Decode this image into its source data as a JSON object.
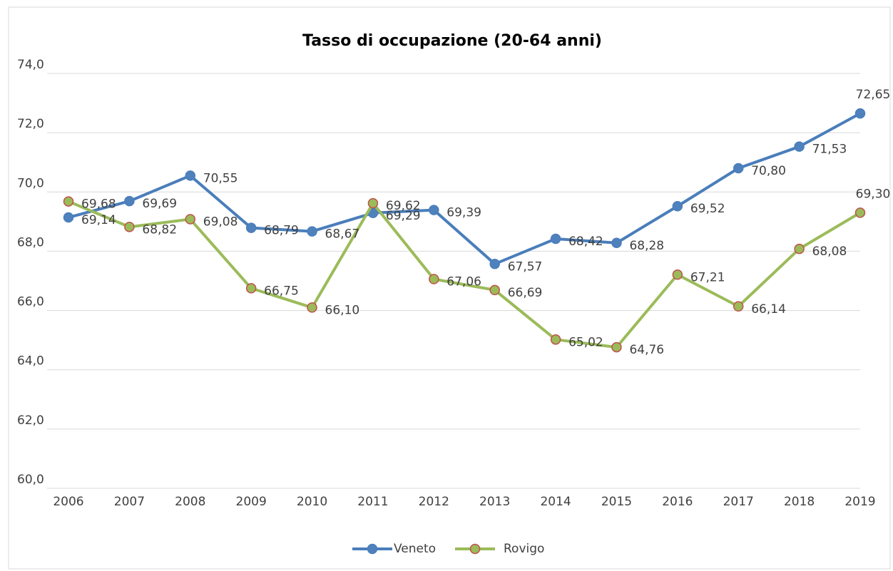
{
  "chart_data": {
    "type": "line",
    "title": "Tasso di occupazione (20-64 anni)",
    "categories": [
      "2006",
      "2007",
      "2008",
      "2009",
      "2010",
      "2011",
      "2012",
      "2013",
      "2014",
      "2015",
      "2016",
      "2017",
      "2018",
      "2019"
    ],
    "series": [
      {
        "name": "Veneto",
        "color": "#4a7ebb",
        "marker_color": "#4f81bd",
        "marker_edge": "#4a7ebb",
        "values": [
          69.14,
          69.69,
          70.55,
          68.79,
          68.67,
          69.29,
          69.39,
          67.57,
          68.42,
          68.28,
          69.52,
          70.8,
          71.53,
          72.65
        ],
        "value_labels": [
          "69,14",
          "69,69",
          "70,55",
          "68,79",
          "68,67",
          "69,29",
          "69,39",
          "67,57",
          "68,42",
          "68,28",
          "69,52",
          "70,80",
          "71,53",
          "72,65"
        ]
      },
      {
        "name": "Rovigo",
        "color": "#9bbb59",
        "marker_color": "#9bbb59",
        "marker_edge": "#c0504d",
        "values": [
          69.68,
          68.82,
          69.08,
          66.75,
          66.1,
          69.62,
          67.06,
          66.69,
          65.02,
          64.76,
          67.21,
          66.14,
          68.08,
          69.3
        ],
        "value_labels": [
          "69,68",
          "68,82",
          "69,08",
          "66,75",
          "66,10",
          "69,62",
          "67,06",
          "66,69",
          "65,02",
          "64,76",
          "67,21",
          "66,14",
          "68,08",
          "69,30"
        ]
      }
    ],
    "ylim": [
      60,
      74
    ],
    "yticks": [
      {
        "value": 60,
        "label": "60,0"
      },
      {
        "value": 62,
        "label": "62,0"
      },
      {
        "value": 64,
        "label": "64,0"
      },
      {
        "value": 66,
        "label": "66,0"
      },
      {
        "value": 68,
        "label": "68,0"
      },
      {
        "value": 70,
        "label": "70,0"
      },
      {
        "value": 72,
        "label": "72,0"
      },
      {
        "value": 74,
        "label": "74,0"
      }
    ],
    "grid": true,
    "legend": "bottom"
  }
}
